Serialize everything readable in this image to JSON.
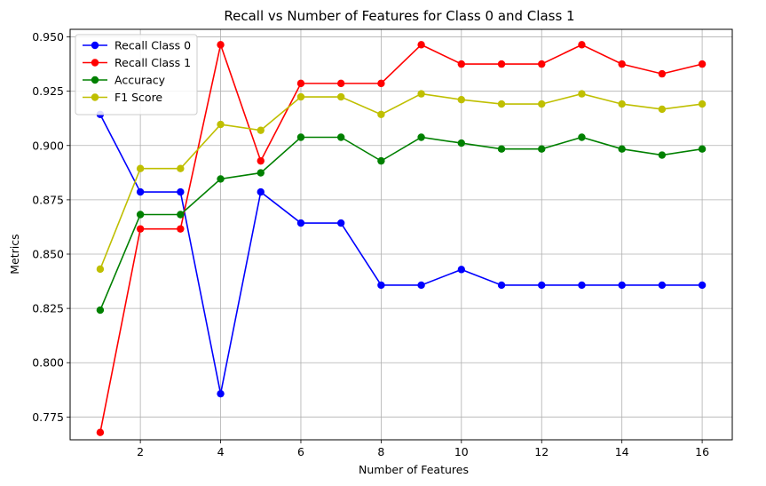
{
  "chart_data": {
    "type": "line",
    "title": "Recall vs Number of Features for Class 0 and Class 1",
    "xlabel": "Number of Features",
    "ylabel": "Metrics",
    "x": [
      1,
      2,
      3,
      4,
      5,
      6,
      7,
      8,
      9,
      10,
      11,
      12,
      13,
      14,
      15,
      16
    ],
    "xlim": [
      0.25,
      16.75
    ],
    "ylim": [
      0.7645,
      0.9535
    ],
    "xticks": [
      2,
      4,
      6,
      8,
      10,
      12,
      14,
      16
    ],
    "yticks": [
      0.775,
      0.8,
      0.825,
      0.85,
      0.875,
      0.9,
      0.925,
      0.95
    ],
    "xtick_labels": [
      "2",
      "4",
      "6",
      "8",
      "10",
      "12",
      "14",
      "16"
    ],
    "ytick_labels": [
      "0.775",
      "0.800",
      "0.825",
      "0.850",
      "0.875",
      "0.900",
      "0.925",
      "0.950"
    ],
    "grid": true,
    "legend_position": "top-left",
    "series": [
      {
        "name": "Recall Class 0",
        "color": "#0000ff",
        "values": [
          0.9143,
          0.8786,
          0.8786,
          0.7857,
          0.8786,
          0.8643,
          0.8643,
          0.8357,
          0.8357,
          0.8429,
          0.8357,
          0.8357,
          0.8357,
          0.8357,
          0.8357,
          0.8357
        ]
      },
      {
        "name": "Recall Class 1",
        "color": "#ff0000",
        "values": [
          0.7679,
          0.8616,
          0.8616,
          0.9464,
          0.8929,
          0.9286,
          0.9286,
          0.9286,
          0.9464,
          0.9375,
          0.9375,
          0.9375,
          0.9464,
          0.9375,
          0.933,
          0.9375
        ]
      },
      {
        "name": "Accuracy",
        "color": "#008000",
        "values": [
          0.8242,
          0.8682,
          0.8682,
          0.8846,
          0.8874,
          0.9038,
          0.9038,
          0.8929,
          0.9038,
          0.9011,
          0.8984,
          0.8984,
          0.9038,
          0.8984,
          0.8956,
          0.8984
        ]
      },
      {
        "name": "F1 Score",
        "color": "#bfbf00",
        "values": [
          0.8431,
          0.8894,
          0.8894,
          0.9097,
          0.907,
          0.9224,
          0.9224,
          0.9143,
          0.9238,
          0.9211,
          0.9191,
          0.9191,
          0.9238,
          0.9191,
          0.9167,
          0.9191
        ]
      }
    ]
  }
}
